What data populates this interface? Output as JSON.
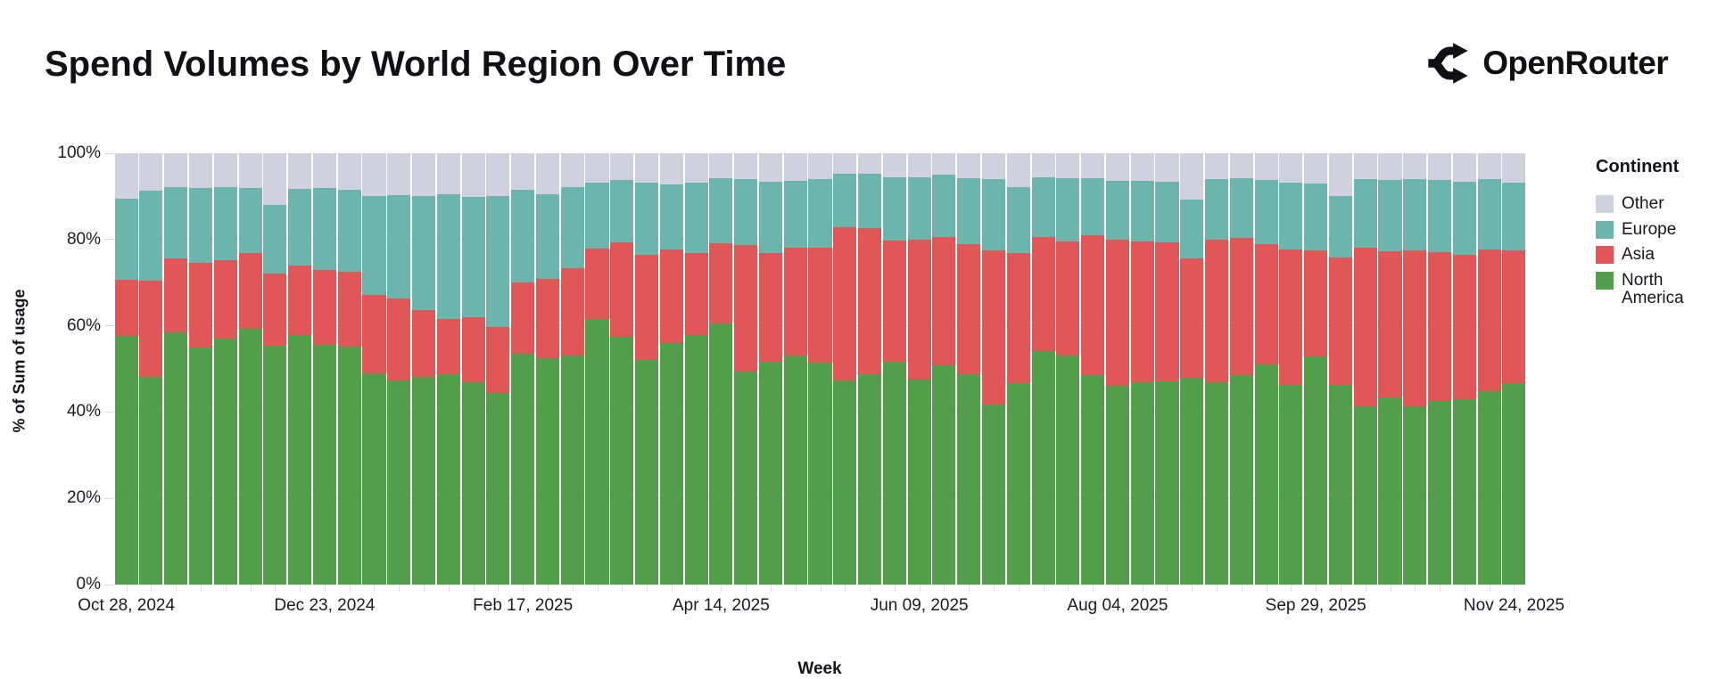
{
  "page": {
    "title": "Spend Volumes by World Region Over Time",
    "brand": "OpenRouter"
  },
  "chart_data": {
    "type": "bar",
    "variant": "stacked-normalized",
    "title": "Spend Volumes by World Region Over Time",
    "xlabel": "Week",
    "ylabel": "% of Sum of usage",
    "ylim": [
      0,
      100
    ],
    "grid": true,
    "y_ticks": [
      {
        "value": 0,
        "label": "0%"
      },
      {
        "value": 20,
        "label": "20%"
      },
      {
        "value": 40,
        "label": "40%"
      },
      {
        "value": 60,
        "label": "60%"
      },
      {
        "value": 80,
        "label": "80%"
      },
      {
        "value": 100,
        "label": "100%"
      }
    ],
    "x_tick_every": 8,
    "categories": [
      "Oct 28, 2024",
      "Nov 04, 2024",
      "Nov 11, 2024",
      "Nov 18, 2024",
      "Nov 25, 2024",
      "Dec 02, 2024",
      "Dec 09, 2024",
      "Dec 16, 2024",
      "Dec 23, 2024",
      "Dec 30, 2024",
      "Jan 06, 2025",
      "Jan 13, 2025",
      "Jan 20, 2025",
      "Jan 27, 2025",
      "Feb 03, 2025",
      "Feb 10, 2025",
      "Feb 17, 2025",
      "Feb 24, 2025",
      "Mar 03, 2025",
      "Mar 10, 2025",
      "Mar 17, 2025",
      "Mar 24, 2025",
      "Mar 31, 2025",
      "Apr 07, 2025",
      "Apr 14, 2025",
      "Apr 21, 2025",
      "Apr 28, 2025",
      "May 05, 2025",
      "May 12, 2025",
      "May 19, 2025",
      "May 26, 2025",
      "Jun 02, 2025",
      "Jun 09, 2025",
      "Jun 16, 2025",
      "Jun 23, 2025",
      "Jun 30, 2025",
      "Jul 07, 2025",
      "Jul 14, 2025",
      "Jul 21, 2025",
      "Jul 28, 2025",
      "Aug 04, 2025",
      "Aug 11, 2025",
      "Aug 18, 2025",
      "Aug 25, 2025",
      "Sep 01, 2025",
      "Sep 08, 2025",
      "Sep 15, 2025",
      "Sep 22, 2025",
      "Sep 29, 2025",
      "Oct 06, 2025",
      "Oct 13, 2025",
      "Oct 20, 2025",
      "Oct 27, 2025",
      "Nov 03, 2025",
      "Nov 10, 2025",
      "Nov 17, 2025",
      "Nov 24, 2025"
    ],
    "series": [
      {
        "name": "North America",
        "color": "#519e4b",
        "values": [
          57.7,
          48.2,
          58.5,
          54.9,
          57.0,
          59.4,
          55.3,
          57.8,
          55.5,
          55.1,
          49.0,
          47.3,
          48.1,
          48.7,
          46.9,
          44.5,
          53.6,
          52.4,
          53.2,
          61.6,
          57.4,
          52.1,
          56.0,
          57.8,
          60.6,
          49.4,
          51.7,
          53.2,
          51.5,
          47.3,
          48.7,
          51.7,
          47.6,
          50.8,
          48.7,
          41.8,
          46.6,
          54.1,
          53.2,
          48.5,
          46.0,
          47.0,
          47.2,
          47.9,
          47.0,
          48.5,
          51.1,
          46.3,
          52.8,
          46.2,
          41.4,
          43.3,
          41.4,
          42.6,
          42.9,
          44.8,
          46.7
        ]
      },
      {
        "name": "Asia",
        "color": "#e15656",
        "values": [
          12.9,
          22.3,
          17.2,
          19.6,
          18.3,
          17.4,
          16.8,
          16.2,
          17.5,
          17.5,
          18.1,
          19.0,
          15.5,
          12.9,
          15.1,
          15.2,
          16.5,
          18.5,
          20.2,
          16.2,
          21.9,
          24.3,
          21.6,
          19.0,
          18.5,
          29.3,
          25.1,
          24.9,
          26.7,
          35.6,
          34.0,
          28.0,
          32.3,
          29.8,
          30.3,
          35.7,
          30.2,
          26.5,
          26.4,
          32.4,
          33.9,
          32.6,
          32.1,
          27.8,
          32.9,
          31.9,
          27.8,
          31.3,
          24.6,
          29.7,
          36.8,
          33.9,
          36.1,
          34.4,
          33.6,
          32.8,
          30.7
        ]
      },
      {
        "name": "Europe",
        "color": "#6cb5ad",
        "values": [
          18.8,
          20.8,
          16.5,
          17.5,
          16.9,
          15.2,
          15.9,
          17.7,
          18.9,
          19.0,
          22.9,
          24.0,
          26.4,
          28.8,
          27.9,
          30.3,
          21.4,
          19.7,
          18.8,
          15.3,
          14.5,
          16.7,
          15.2,
          16.3,
          15.2,
          15.4,
          16.6,
          15.5,
          15.9,
          12.4,
          12.6,
          14.8,
          14.6,
          14.5,
          15.3,
          16.5,
          15.4,
          13.9,
          14.7,
          13.3,
          13.7,
          14.0,
          14.1,
          13.5,
          14.2,
          13.9,
          15.0,
          15.5,
          15.6,
          14.1,
          15.9,
          16.6,
          16.6,
          16.8,
          16.9,
          16.5,
          15.8
        ]
      },
      {
        "name": "Other",
        "color": "#d0d1de",
        "values": [
          10.6,
          8.7,
          7.8,
          8.0,
          7.8,
          8.0,
          12.0,
          8.3,
          8.1,
          8.4,
          10.0,
          9.7,
          10.0,
          9.6,
          10.1,
          10.0,
          8.5,
          9.4,
          7.8,
          6.9,
          6.2,
          6.9,
          7.2,
          6.9,
          5.7,
          5.9,
          6.6,
          6.4,
          5.9,
          4.7,
          4.7,
          5.5,
          5.5,
          4.9,
          5.7,
          6.0,
          7.8,
          5.5,
          5.7,
          5.8,
          6.4,
          6.4,
          6.6,
          10.8,
          5.9,
          5.7,
          6.1,
          6.9,
          7.0,
          10.0,
          5.9,
          6.2,
          5.9,
          6.2,
          6.6,
          5.9,
          6.8
        ]
      }
    ],
    "legend": {
      "title": "Continent",
      "position": "right",
      "entries": [
        {
          "label": "Other",
          "color": "#d0d1de"
        },
        {
          "label": "Europe",
          "color": "#6cb5ad"
        },
        {
          "label": "Asia",
          "color": "#e15656"
        },
        {
          "label": "North America",
          "color": "#519e4b"
        }
      ]
    }
  }
}
